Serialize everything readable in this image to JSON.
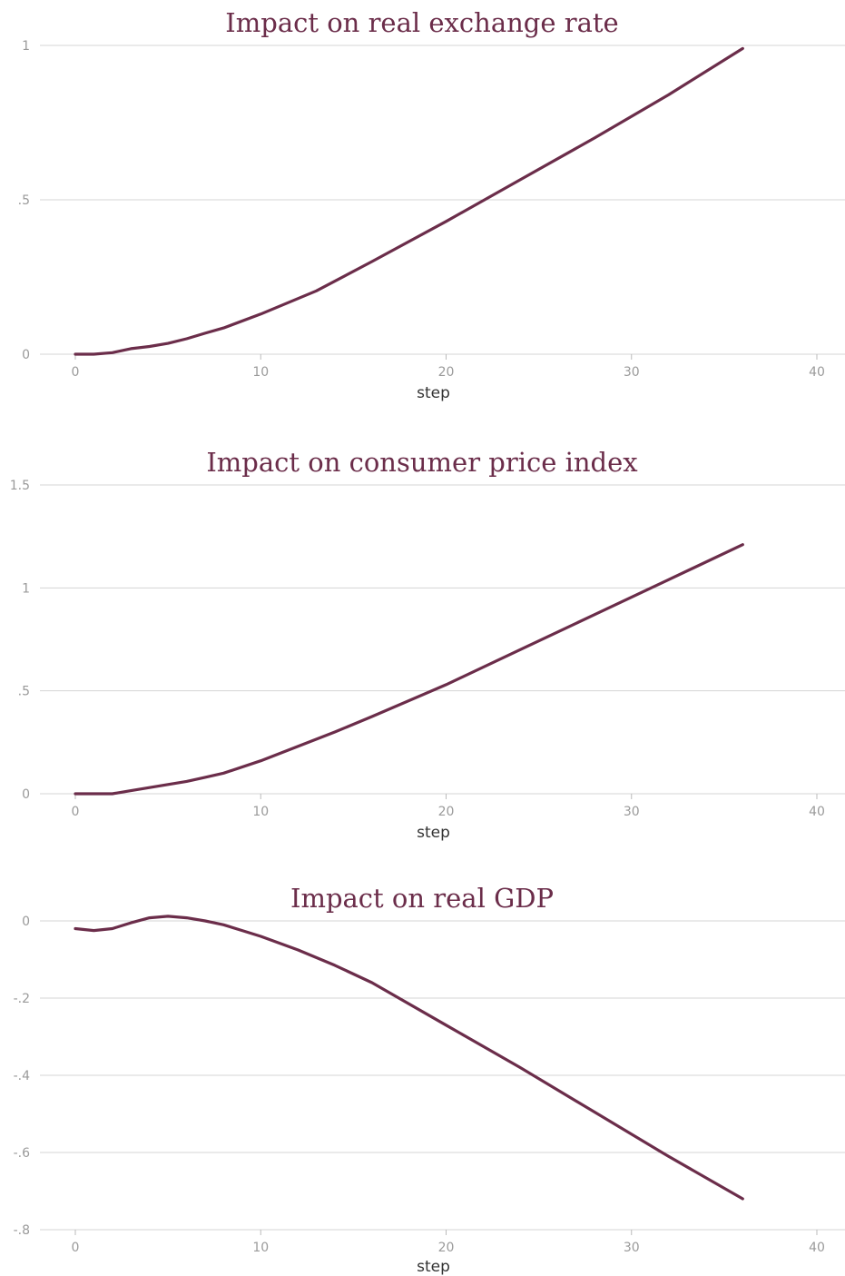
{
  "colors": {
    "line": "#6b2d4a",
    "grid": "#d4d4d4",
    "tick": "#9a9a9a"
  },
  "chart_data": [
    {
      "type": "line",
      "title": "Impact on real exchange rate",
      "xlabel": "step",
      "ylabel": "",
      "xlim": [
        0,
        40
      ],
      "ylim": [
        0,
        1
      ],
      "xticks": [
        0,
        10,
        20,
        30,
        40
      ],
      "xtick_labels": [
        "0",
        "10",
        "20",
        "30",
        "40"
      ],
      "yticks": [
        0,
        0.5,
        1
      ],
      "ytick_labels": [
        "0",
        ".5",
        "1"
      ],
      "grid": true,
      "legend": "none",
      "series": [
        {
          "x": [
            0,
            1,
            2,
            3,
            4,
            5,
            6,
            7,
            8,
            10,
            12,
            13,
            16,
            20,
            24,
            28,
            32,
            36
          ],
          "y": [
            0.0,
            0.0,
            0.005,
            0.018,
            0.025,
            0.035,
            0.05,
            0.068,
            0.085,
            0.13,
            0.18,
            0.205,
            0.3,
            0.43,
            0.565,
            0.7,
            0.84,
            0.99
          ]
        }
      ]
    },
    {
      "type": "line",
      "title": "Impact on consumer price index",
      "xlabel": "step",
      "ylabel": "",
      "xlim": [
        0,
        40
      ],
      "ylim": [
        0,
        1.5
      ],
      "xticks": [
        0,
        10,
        20,
        30,
        40
      ],
      "xtick_labels": [
        "0",
        "10",
        "20",
        "30",
        "40"
      ],
      "yticks": [
        0,
        0.5,
        1,
        1.5
      ],
      "ytick_labels": [
        "0",
        ".5",
        "1",
        "1.5"
      ],
      "grid": true,
      "legend": "none",
      "series": [
        {
          "x": [
            0,
            1,
            2,
            3,
            4,
            5,
            6,
            7,
            8,
            10,
            12,
            14,
            16,
            20,
            24,
            28,
            32,
            36
          ],
          "y": [
            0.0,
            0.0,
            0.0,
            0.015,
            0.03,
            0.045,
            0.06,
            0.08,
            0.1,
            0.16,
            0.23,
            0.3,
            0.375,
            0.53,
            0.7,
            0.87,
            1.04,
            1.21
          ]
        }
      ]
    },
    {
      "type": "line",
      "title": "Impact on real GDP",
      "xlabel": "step",
      "ylabel": "",
      "xlim": [
        0,
        40
      ],
      "ylim": [
        -0.8,
        0
      ],
      "xticks": [
        0,
        10,
        20,
        30,
        40
      ],
      "xtick_labels": [
        "0",
        "10",
        "20",
        "30",
        "40"
      ],
      "yticks": [
        0,
        -0.2,
        -0.4,
        -0.6,
        -0.8
      ],
      "ytick_labels": [
        "0",
        "-.2",
        "-.4",
        "-.6",
        "-.8"
      ],
      "grid": true,
      "legend": "none",
      "series": [
        {
          "x": [
            0,
            1,
            2,
            3,
            4,
            5,
            6,
            7,
            8,
            9,
            10,
            12,
            14,
            16,
            20,
            24,
            28,
            32,
            36
          ],
          "y": [
            -0.02,
            -0.025,
            -0.02,
            -0.005,
            0.008,
            0.012,
            0.008,
            0.0,
            -0.01,
            -0.025,
            -0.04,
            -0.075,
            -0.115,
            -0.16,
            -0.27,
            -0.38,
            -0.495,
            -0.61,
            -0.72
          ]
        }
      ]
    }
  ]
}
